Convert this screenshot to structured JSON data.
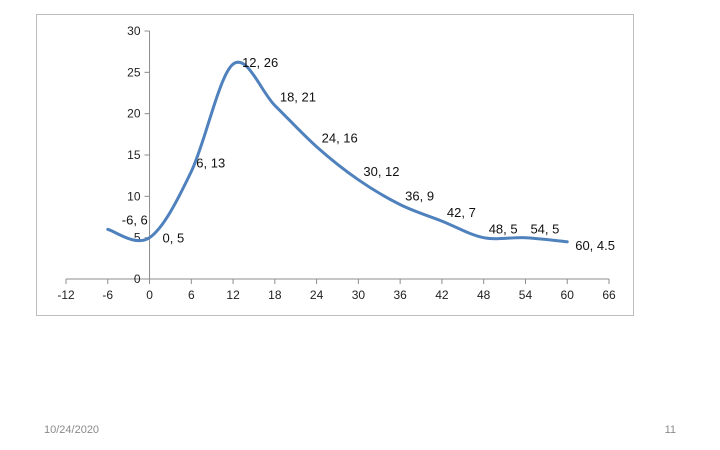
{
  "chart_data": {
    "type": "line",
    "smooth": true,
    "x": [
      -6,
      0,
      6,
      12,
      18,
      24,
      30,
      36,
      42,
      48,
      54,
      60
    ],
    "y": [
      6,
      5,
      13,
      26,
      21,
      16,
      12,
      9,
      7,
      5,
      5,
      4.5
    ],
    "point_labels": [
      "-6, 6",
      "0, 5",
      "6, 13",
      "12, 26",
      "18, 21",
      "24, 16",
      "30, 12",
      "36, 9",
      "42, 7",
      "48, 5",
      "54, 5",
      "60, 4.5"
    ],
    "xlim": [
      -12,
      66
    ],
    "ylim": [
      0,
      30
    ],
    "x_ticks": [
      "-12",
      "-6",
      "0",
      "6",
      "12",
      "18",
      "24",
      "30",
      "36",
      "42",
      "48",
      "54",
      "60",
      "66"
    ],
    "y_ticks": [
      "0",
      "5",
      "10",
      "15",
      "20",
      "25",
      "30"
    ],
    "line_color": "#4f81bd",
    "grid": false,
    "legend": false
  },
  "footer": {
    "date": "10/24/2020",
    "page_number": "11"
  }
}
